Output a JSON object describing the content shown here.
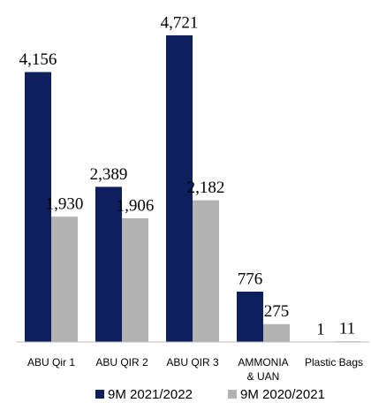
{
  "chart_data": {
    "type": "bar",
    "categories": [
      "ABU Qir 1",
      "ABU QIR 2",
      "ABU QIR 3",
      [
        "AMMONIA",
        "& UAN"
      ],
      "Plastic Bags"
    ],
    "series": [
      {
        "name": "9M 2021/2022",
        "color": "#0d1f5c",
        "values": [
          4156,
          2389,
          4721,
          776,
          1
        ],
        "value_labels": [
          "4,156",
          "2,389",
          "4,721",
          "776",
          "1"
        ]
      },
      {
        "name": "9M 2020/2021",
        "color": "#b3b3b3",
        "values": [
          1930,
          1906,
          2182,
          275,
          11
        ],
        "value_labels": [
          "1,930",
          "1,906",
          "2,182",
          "275",
          "11"
        ]
      }
    ]
  }
}
